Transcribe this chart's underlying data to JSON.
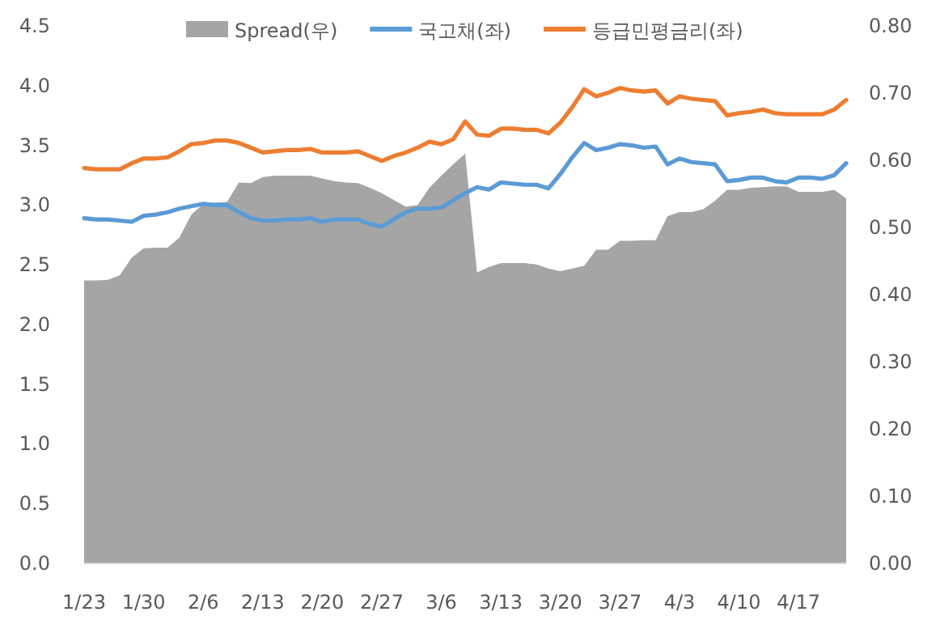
{
  "chart_data": {
    "type": "line",
    "categories": [
      "1/23",
      null,
      null,
      null,
      null,
      "1/30",
      null,
      null,
      null,
      null,
      "2/6",
      null,
      null,
      null,
      null,
      "2/13",
      null,
      null,
      null,
      null,
      "2/20",
      null,
      null,
      null,
      null,
      "2/27",
      null,
      null,
      null,
      null,
      "3/6",
      null,
      null,
      null,
      null,
      "3/13",
      null,
      null,
      null,
      null,
      "3/20",
      null,
      null,
      null,
      null,
      "3/27",
      null,
      null,
      null,
      null,
      "4/3",
      null,
      null,
      null,
      null,
      "4/10",
      null,
      null,
      null,
      null,
      "4/17",
      null,
      null,
      null,
      null
    ],
    "series": [
      {
        "name": "Spread(우)",
        "type": "area",
        "axis": "y2",
        "color": "#a5a5a5",
        "values": [
          0.421,
          0.421,
          0.422,
          0.429,
          0.455,
          0.469,
          0.47,
          0.47,
          0.485,
          0.519,
          0.535,
          0.537,
          0.538,
          0.567,
          0.566,
          0.575,
          0.577,
          0.577,
          0.577,
          0.577,
          0.573,
          0.569,
          0.567,
          0.566,
          0.559,
          0.551,
          0.541,
          0.531,
          0.533,
          0.559,
          0.577,
          0.594,
          0.61,
          0.433,
          0.441,
          0.447,
          0.447,
          0.447,
          0.445,
          0.439,
          0.435,
          0.439,
          0.443,
          0.467,
          0.467,
          0.48,
          0.48,
          0.481,
          0.481,
          0.517,
          0.523,
          0.523,
          0.527,
          0.54,
          0.556,
          0.556,
          0.559,
          0.56,
          0.561,
          0.561,
          0.553,
          0.553,
          0.553,
          0.556,
          0.543
        ]
      },
      {
        "name": "국고채(좌)",
        "color": "#5b9bd5",
        "values": [
          2.89,
          2.88,
          2.88,
          2.87,
          2.86,
          2.91,
          2.92,
          2.94,
          2.97,
          2.99,
          3.01,
          3.0,
          3.0,
          2.94,
          2.89,
          2.87,
          2.87,
          2.88,
          2.88,
          2.89,
          2.86,
          2.88,
          2.88,
          2.88,
          2.84,
          2.82,
          2.88,
          2.94,
          2.97,
          2.97,
          2.98,
          3.04,
          3.1,
          3.15,
          3.13,
          3.19,
          3.18,
          3.17,
          3.17,
          3.14,
          3.26,
          3.4,
          3.52,
          3.46,
          3.48,
          3.51,
          3.5,
          3.48,
          3.49,
          3.34,
          3.39,
          3.36,
          3.35,
          3.34,
          3.2,
          3.21,
          3.23,
          3.23,
          3.2,
          3.19,
          3.23,
          3.23,
          3.22,
          3.25,
          3.35
        ]
      },
      {
        "name": "등급민평금리(좌)",
        "color": "#ed7d31",
        "values": [
          3.31,
          3.3,
          3.3,
          3.3,
          3.35,
          3.39,
          3.39,
          3.4,
          3.45,
          3.51,
          3.52,
          3.54,
          3.54,
          3.52,
          3.48,
          3.44,
          3.45,
          3.46,
          3.46,
          3.47,
          3.44,
          3.44,
          3.44,
          3.45,
          3.41,
          3.37,
          3.41,
          3.44,
          3.48,
          3.53,
          3.51,
          3.55,
          3.7,
          3.59,
          3.58,
          3.64,
          3.64,
          3.63,
          3.63,
          3.6,
          3.69,
          3.82,
          3.97,
          3.91,
          3.94,
          3.98,
          3.96,
          3.95,
          3.96,
          3.85,
          3.91,
          3.89,
          3.88,
          3.87,
          3.75,
          3.77,
          3.78,
          3.8,
          3.77,
          3.76,
          3.76,
          3.76,
          3.76,
          3.8,
          3.88
        ]
      }
    ],
    "ylim": [
      0,
      4.5
    ],
    "yticks": [
      {
        "value": 0,
        "label": "0.0"
      },
      {
        "value": 0.5,
        "label": "0.5"
      },
      {
        "value": 1,
        "label": "1.0"
      },
      {
        "value": 1.5,
        "label": "1.5"
      },
      {
        "value": 2,
        "label": "2.0"
      },
      {
        "value": 2.5,
        "label": "2.5"
      },
      {
        "value": 3,
        "label": "3.0"
      },
      {
        "value": 3.5,
        "label": "3.5"
      },
      {
        "value": 4,
        "label": "4.0"
      },
      {
        "value": 4.5,
        "label": "4.5"
      }
    ],
    "y2lim": [
      0,
      0.8
    ],
    "y2ticks": [
      {
        "value": 0,
        "label": "0.00"
      },
      {
        "value": 0.1,
        "label": "0.10"
      },
      {
        "value": 0.2,
        "label": "0.20"
      },
      {
        "value": 0.3,
        "label": "0.30"
      },
      {
        "value": 0.4,
        "label": "0.40"
      },
      {
        "value": 0.5,
        "label": "0.50"
      },
      {
        "value": 0.6,
        "label": "0.60"
      },
      {
        "value": 0.7,
        "label": "0.70"
      },
      {
        "value": 0.8,
        "label": "0.80"
      }
    ],
    "grid": false,
    "legend": "top"
  }
}
